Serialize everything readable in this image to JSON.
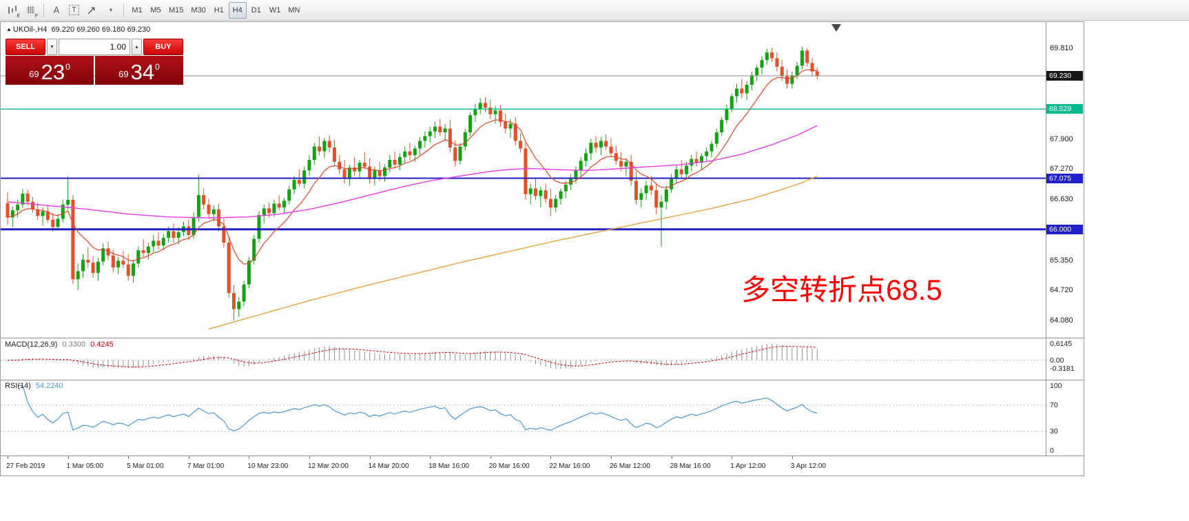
{
  "toolbar": {
    "icon_subs": {
      "e": "E",
      "f": "F"
    },
    "font_tool": "A",
    "text_tool": "T",
    "caret": "▾",
    "timeframes": [
      {
        "label": "M1",
        "active": false
      },
      {
        "label": "M5",
        "active": false
      },
      {
        "label": "M15",
        "active": false
      },
      {
        "label": "M30",
        "active": false
      },
      {
        "label": "H1",
        "active": false
      },
      {
        "label": "H4",
        "active": true
      },
      {
        "label": "D1",
        "active": false
      },
      {
        "label": "W1",
        "active": false
      },
      {
        "label": "MN",
        "active": false
      }
    ]
  },
  "chart_header": {
    "direction_icon": "▲",
    "symbol": "UKOil-,H4",
    "ohlc": "69.220 69.260 69.180 69.230"
  },
  "trade_panel": {
    "sell_label": "SELL",
    "buy_label": "BUY",
    "volume": "1.00",
    "spin_down": "▼",
    "spin_up": "▲",
    "sell_price": {
      "prefix": "69",
      "big": "23",
      "sup": "0"
    },
    "buy_price": {
      "prefix": "69",
      "big": "34",
      "sup": "0"
    }
  },
  "annotation": {
    "text": "多空转折点68.5",
    "color": "#ff0000"
  },
  "colors": {
    "bull": "#14a114",
    "bear": "#e4502a",
    "current_price_line": "#8a8a8a"
  },
  "chart_data": {
    "type": "candlestick",
    "symbol": "UKOil-",
    "timeframe": "H4",
    "ohlc_header": {
      "open": "69.220",
      "high": "69.260",
      "low": "69.180",
      "close": "69.230"
    },
    "ylim": [
      63.72,
      70.36
    ],
    "price_ticks": [
      "69.810",
      "67.900",
      "67.270",
      "66.630",
      "65.350",
      "64.720",
      "64.080"
    ],
    "badges": [
      {
        "value": "69.230",
        "price": 69.23,
        "color": "#161616"
      },
      {
        "value": "68.529",
        "price": 68.529,
        "color": "#00b98c"
      },
      {
        "value": "67.075",
        "price": 67.075,
        "color": "#2121c8"
      },
      {
        "value": "66.000",
        "price": 66.0,
        "color": "#2121c8"
      }
    ],
    "hlines": [
      {
        "price": 68.529,
        "color": "#00b98c",
        "width": 1.4
      },
      {
        "price": 67.075,
        "color": "#2121c8",
        "width": 2
      },
      {
        "price": 66.0,
        "color": "#2121c8",
        "width": 3
      }
    ],
    "current_price": 69.23,
    "candles": [
      [
        66.55,
        66.78,
        66.1,
        66.25
      ],
      [
        66.25,
        66.48,
        66.05,
        66.4
      ],
      [
        66.4,
        66.62,
        66.25,
        66.52
      ],
      [
        66.52,
        66.85,
        66.45,
        66.75
      ],
      [
        66.75,
        66.83,
        66.5,
        66.58
      ],
      [
        66.58,
        66.68,
        66.35,
        66.42
      ],
      [
        66.42,
        66.55,
        66.2,
        66.28
      ],
      [
        66.28,
        66.46,
        66.08,
        66.38
      ],
      [
        66.38,
        66.5,
        66.15,
        66.2
      ],
      [
        66.2,
        66.35,
        65.95,
        66.05
      ],
      [
        66.05,
        66.32,
        65.98,
        66.22
      ],
      [
        66.22,
        66.62,
        66.15,
        66.52
      ],
      [
        66.52,
        67.12,
        66.42,
        66.62
      ],
      [
        66.62,
        66.72,
        64.85,
        64.95
      ],
      [
        64.95,
        65.28,
        64.72,
        65.12
      ],
      [
        65.12,
        65.48,
        64.98,
        65.36
      ],
      [
        65.36,
        65.62,
        65.2,
        65.3
      ],
      [
        65.3,
        65.44,
        64.98,
        65.08
      ],
      [
        65.08,
        65.4,
        64.92,
        65.32
      ],
      [
        65.32,
        65.7,
        65.24,
        65.6
      ],
      [
        65.6,
        65.74,
        65.36,
        65.45
      ],
      [
        65.45,
        65.58,
        65.1,
        65.2
      ],
      [
        65.2,
        65.42,
        65.06,
        65.34
      ],
      [
        65.34,
        65.54,
        65.18,
        65.26
      ],
      [
        65.26,
        65.48,
        64.92,
        65.02
      ],
      [
        65.02,
        65.36,
        64.88,
        65.28
      ],
      [
        65.28,
        65.64,
        65.2,
        65.56
      ],
      [
        65.56,
        65.8,
        65.42,
        65.5
      ],
      [
        65.5,
        65.72,
        65.36,
        65.64
      ],
      [
        65.64,
        65.88,
        65.52,
        65.76
      ],
      [
        65.76,
        65.94,
        65.58,
        65.66
      ],
      [
        65.66,
        65.9,
        65.56,
        65.82
      ],
      [
        65.82,
        66.06,
        65.72,
        65.96
      ],
      [
        65.96,
        66.12,
        65.72,
        65.82
      ],
      [
        65.82,
        66.04,
        65.68,
        65.94
      ],
      [
        65.94,
        66.16,
        65.86,
        66.06
      ],
      [
        66.06,
        66.2,
        65.78,
        65.88
      ],
      [
        65.88,
        66.36,
        65.8,
        66.26
      ],
      [
        66.26,
        67.15,
        66.16,
        66.72
      ],
      [
        66.72,
        66.86,
        66.42,
        66.52
      ],
      [
        66.52,
        66.64,
        66.22,
        66.32
      ],
      [
        66.32,
        66.5,
        66.16,
        66.42
      ],
      [
        66.42,
        66.54,
        65.96,
        66.06
      ],
      [
        66.06,
        66.22,
        65.62,
        65.72
      ],
      [
        65.72,
        65.82,
        64.56,
        64.66
      ],
      [
        64.66,
        64.82,
        64.08,
        64.32
      ],
      [
        64.32,
        64.58,
        64.16,
        64.48
      ],
      [
        64.48,
        64.92,
        64.38,
        64.84
      ],
      [
        64.84,
        65.42,
        64.76,
        65.34
      ],
      [
        65.34,
        65.88,
        65.26,
        65.8
      ],
      [
        65.8,
        66.38,
        65.72,
        66.3
      ],
      [
        66.3,
        66.52,
        66.12,
        66.44
      ],
      [
        66.44,
        66.56,
        66.24,
        66.34
      ],
      [
        66.34,
        66.62,
        66.26,
        66.54
      ],
      [
        66.54,
        66.72,
        66.4,
        66.46
      ],
      [
        66.46,
        66.66,
        66.32,
        66.6
      ],
      [
        66.6,
        66.92,
        66.52,
        66.84
      ],
      [
        66.84,
        67.12,
        66.74,
        67.04
      ],
      [
        67.04,
        67.26,
        66.9,
        66.96
      ],
      [
        66.96,
        67.32,
        66.86,
        67.24
      ],
      [
        67.24,
        67.56,
        67.12,
        67.46
      ],
      [
        67.46,
        67.82,
        67.36,
        67.74
      ],
      [
        67.74,
        67.96,
        67.56,
        67.64
      ],
      [
        67.64,
        67.92,
        67.5,
        67.86
      ],
      [
        67.86,
        67.98,
        67.62,
        67.72
      ],
      [
        67.72,
        67.88,
        67.32,
        67.42
      ],
      [
        67.42,
        67.56,
        67.16,
        67.26
      ],
      [
        67.26,
        67.46,
        66.96,
        67.06
      ],
      [
        67.06,
        67.36,
        66.92,
        67.3
      ],
      [
        67.3,
        67.52,
        67.12,
        67.22
      ],
      [
        67.22,
        67.46,
        67.06,
        67.4
      ],
      [
        67.4,
        67.62,
        67.26,
        67.32
      ],
      [
        67.32,
        67.5,
        66.96,
        67.06
      ],
      [
        67.06,
        67.32,
        66.92,
        67.24
      ],
      [
        67.24,
        67.42,
        67.02,
        67.12
      ],
      [
        67.12,
        67.36,
        67.0,
        67.3
      ],
      [
        67.3,
        67.56,
        67.2,
        67.46
      ],
      [
        67.46,
        67.64,
        67.3,
        67.36
      ],
      [
        67.36,
        67.6,
        67.24,
        67.52
      ],
      [
        67.52,
        67.74,
        67.4,
        67.64
      ],
      [
        67.64,
        67.82,
        67.46,
        67.56
      ],
      [
        67.56,
        67.76,
        67.42,
        67.7
      ],
      [
        67.7,
        67.94,
        67.56,
        67.86
      ],
      [
        67.86,
        68.06,
        67.72,
        67.96
      ],
      [
        67.96,
        68.16,
        67.82,
        68.06
      ],
      [
        68.06,
        68.26,
        67.92,
        68.16
      ],
      [
        68.16,
        68.32,
        67.96,
        68.04
      ],
      [
        68.04,
        68.22,
        67.86,
        68.12
      ],
      [
        68.12,
        68.3,
        67.62,
        67.72
      ],
      [
        67.72,
        67.86,
        67.32,
        67.44
      ],
      [
        67.44,
        67.82,
        67.36,
        67.74
      ],
      [
        67.74,
        68.12,
        67.66,
        68.04
      ],
      [
        68.04,
        68.46,
        67.96,
        68.4
      ],
      [
        68.4,
        68.64,
        68.26,
        68.54
      ],
      [
        68.54,
        68.76,
        68.42,
        68.66
      ],
      [
        68.66,
        68.78,
        68.46,
        68.56
      ],
      [
        68.56,
        68.72,
        68.32,
        68.42
      ],
      [
        68.42,
        68.6,
        68.22,
        68.5
      ],
      [
        68.5,
        68.62,
        68.16,
        68.26
      ],
      [
        68.26,
        68.44,
        68.02,
        68.12
      ],
      [
        68.12,
        68.32,
        67.92,
        68.22
      ],
      [
        68.22,
        68.36,
        67.76,
        67.86
      ],
      [
        67.86,
        68.02,
        67.62,
        67.7
      ],
      [
        67.7,
        67.82,
        66.62,
        66.74
      ],
      [
        66.74,
        66.96,
        66.52,
        66.86
      ],
      [
        66.86,
        67.06,
        66.62,
        66.7
      ],
      [
        66.7,
        66.9,
        66.46,
        66.82
      ],
      [
        66.82,
        66.96,
        66.56,
        66.64
      ],
      [
        66.64,
        66.86,
        66.28,
        66.46
      ],
      [
        66.46,
        66.72,
        66.36,
        66.64
      ],
      [
        66.64,
        66.86,
        66.52,
        66.8
      ],
      [
        66.8,
        67.02,
        66.66,
        66.94
      ],
      [
        66.94,
        67.16,
        66.82,
        67.06
      ],
      [
        67.06,
        67.32,
        66.96,
        67.24
      ],
      [
        67.24,
        67.52,
        67.12,
        67.44
      ],
      [
        67.44,
        67.7,
        67.32,
        67.6
      ],
      [
        67.6,
        67.9,
        67.46,
        67.82
      ],
      [
        67.82,
        67.96,
        67.62,
        67.72
      ],
      [
        67.72,
        67.94,
        67.56,
        67.86
      ],
      [
        67.86,
        68.0,
        67.66,
        67.74
      ],
      [
        67.74,
        67.92,
        67.52,
        67.6
      ],
      [
        67.6,
        67.76,
        67.36,
        67.44
      ],
      [
        67.44,
        67.62,
        67.22,
        67.32
      ],
      [
        67.32,
        67.5,
        67.12,
        67.42
      ],
      [
        67.42,
        67.56,
        66.92,
        67.02
      ],
      [
        67.02,
        67.22,
        66.52,
        66.62
      ],
      [
        66.62,
        66.86,
        66.46,
        66.76
      ],
      [
        66.76,
        67.02,
        66.62,
        66.92
      ],
      [
        66.92,
        67.12,
        66.72,
        66.82
      ],
      [
        66.82,
        66.96,
        66.32,
        66.46
      ],
      [
        66.46,
        66.72,
        65.63,
        66.58
      ],
      [
        66.58,
        66.92,
        66.42,
        66.84
      ],
      [
        66.84,
        67.16,
        66.76,
        67.06
      ],
      [
        67.06,
        67.36,
        66.96,
        67.26
      ],
      [
        67.26,
        67.46,
        67.06,
        67.16
      ],
      [
        67.16,
        67.42,
        67.04,
        67.34
      ],
      [
        67.34,
        67.56,
        67.22,
        67.48
      ],
      [
        67.48,
        67.64,
        67.32,
        67.4
      ],
      [
        67.4,
        67.6,
        67.26,
        67.54
      ],
      [
        67.54,
        67.72,
        67.42,
        67.64
      ],
      [
        67.64,
        67.86,
        67.52,
        67.8
      ],
      [
        67.8,
        68.12,
        67.72,
        68.04
      ],
      [
        68.04,
        68.36,
        67.96,
        68.3
      ],
      [
        68.3,
        68.62,
        68.22,
        68.54
      ],
      [
        68.54,
        68.86,
        68.46,
        68.8
      ],
      [
        68.8,
        69.06,
        68.66,
        68.96
      ],
      [
        68.96,
        69.16,
        68.76,
        68.86
      ],
      [
        68.86,
        69.12,
        68.72,
        69.04
      ],
      [
        69.04,
        69.32,
        68.92,
        69.24
      ],
      [
        69.24,
        69.46,
        69.12,
        69.4
      ],
      [
        69.4,
        69.64,
        69.26,
        69.56
      ],
      [
        69.56,
        69.8,
        69.46,
        69.72
      ],
      [
        69.72,
        69.82,
        69.52,
        69.6
      ],
      [
        69.6,
        69.72,
        69.32,
        69.42
      ],
      [
        69.42,
        69.56,
        69.12,
        69.22
      ],
      [
        69.22,
        69.36,
        68.96,
        69.06
      ],
      [
        69.06,
        69.32,
        68.96,
        69.24
      ],
      [
        69.24,
        69.52,
        69.16,
        69.44
      ],
      [
        69.44,
        69.85,
        69.36,
        69.76
      ],
      [
        69.76,
        69.81,
        69.42,
        69.5
      ],
      [
        69.5,
        69.6,
        69.22,
        69.32
      ],
      [
        69.32,
        69.4,
        69.16,
        69.23
      ]
    ],
    "time_labels": [
      {
        "i": 0,
        "label": "27 Feb 2019"
      },
      {
        "i": 12,
        "label": "1 Mar 05:00"
      },
      {
        "i": 24,
        "label": "5 Mar 01:00"
      },
      {
        "i": 36,
        "label": "7 Mar 01:00"
      },
      {
        "i": 48,
        "label": "10 Mar 23:00"
      },
      {
        "i": 60,
        "label": "12 Mar 20:00"
      },
      {
        "i": 72,
        "label": "14 Mar 20:00"
      },
      {
        "i": 84,
        "label": "18 Mar 16:00"
      },
      {
        "i": 96,
        "label": "20 Mar 16:00"
      },
      {
        "i": 108,
        "label": "22 Mar 16:00"
      },
      {
        "i": 120,
        "label": "26 Mar 12:00"
      },
      {
        "i": 132,
        "label": "28 Mar 16:00"
      },
      {
        "i": 144,
        "label": "1 Apr 12:00"
      },
      {
        "i": 156,
        "label": "3 Apr 12:00"
      }
    ],
    "ma_overlays": {
      "fast": {
        "name": "fast-ma",
        "color": "#e0452a",
        "type": "ema",
        "period": 10
      },
      "mid": {
        "name": "mid-ma",
        "color": "#e83ce8",
        "points": [
          [
            0,
            66.58
          ],
          [
            8,
            66.5
          ],
          [
            16,
            66.42
          ],
          [
            24,
            66.32
          ],
          [
            32,
            66.26
          ],
          [
            40,
            66.24
          ],
          [
            48,
            66.26
          ],
          [
            54,
            66.32
          ],
          [
            60,
            66.42
          ],
          [
            66,
            66.56
          ],
          [
            72,
            66.72
          ],
          [
            78,
            66.88
          ],
          [
            84,
            67.02
          ],
          [
            90,
            67.12
          ],
          [
            96,
            67.22
          ],
          [
            100,
            67.26
          ],
          [
            104,
            67.28
          ],
          [
            110,
            67.25
          ],
          [
            116,
            67.24
          ],
          [
            122,
            67.28
          ],
          [
            128,
            67.32
          ],
          [
            134,
            67.36
          ],
          [
            140,
            67.44
          ],
          [
            146,
            67.58
          ],
          [
            152,
            67.78
          ],
          [
            157,
            67.98
          ],
          [
            161,
            68.18
          ]
        ]
      },
      "slow": {
        "name": "slow-ma",
        "color": "#eaa23c",
        "points": [
          [
            40,
            63.9
          ],
          [
            50,
            64.2
          ],
          [
            60,
            64.5
          ],
          [
            70,
            64.78
          ],
          [
            80,
            65.04
          ],
          [
            90,
            65.3
          ],
          [
            100,
            65.54
          ],
          [
            110,
            65.78
          ],
          [
            120,
            66.0
          ],
          [
            130,
            66.22
          ],
          [
            140,
            66.44
          ],
          [
            148,
            66.64
          ],
          [
            154,
            66.84
          ],
          [
            158,
            66.98
          ],
          [
            161,
            67.12
          ]
        ]
      }
    },
    "macd": {
      "label": "MACD(12,26,9)",
      "main_value": "0.3300",
      "signal_value": "0.4245",
      "params": [
        12,
        26,
        9
      ],
      "scale": [
        "0.6145",
        "0.00",
        "-0.3181"
      ],
      "ylim": [
        -0.69,
        0.78
      ],
      "colors": {
        "histogram": "#8f8f8f",
        "signal": "#d40000"
      }
    },
    "rsi": {
      "label": "RSI(14)",
      "value": "54.2240",
      "period": 14,
      "scale": [
        "100",
        "70",
        "30",
        "0"
      ],
      "levels": [
        70,
        30
      ],
      "ylim": [
        -6,
        108
      ],
      "color": "#4a96d2"
    }
  }
}
